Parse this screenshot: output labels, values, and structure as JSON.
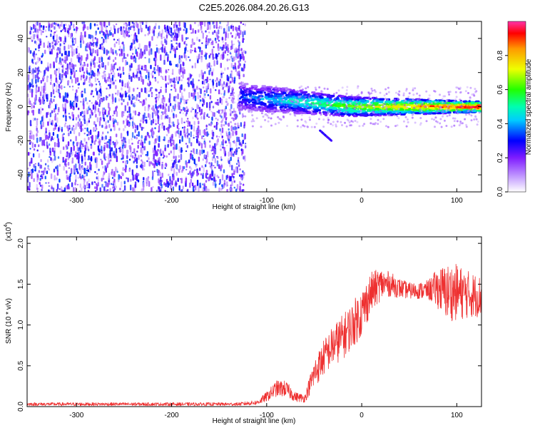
{
  "chart_data": [
    {
      "type": "heatmap",
      "title": "C2E5.2026.084.20.26.G13",
      "xlabel": "Height of straight line (km)",
      "ylabel": "Frequency (Hz)",
      "xlim": [
        -352,
        126
      ],
      "ylim": [
        -50,
        50
      ],
      "x_ticks": [
        -300,
        -200,
        -100,
        0,
        100
      ],
      "y_ticks": [
        -40,
        -20,
        0,
        20,
        40
      ],
      "noise_region": {
        "x_range": [
          -352,
          -123
        ],
        "description_value_range": [
          0.05,
          0.35
        ]
      },
      "signal_band": {
        "x_range": [
          -130,
          126
        ],
        "center_frequency_hz": 0,
        "start_frequency_hz": 6,
        "amplitude_start": 0.3,
        "amplitude_end": 1.0,
        "secondary_streak": {
          "x_range": [
            -45,
            -33
          ],
          "frequency_range": [
            -20,
            -14
          ]
        }
      },
      "colorbar": {
        "label": "Normalized spectral amplitude",
        "range": [
          0,
          1
        ],
        "ticks": [
          "0.0",
          "0.2",
          "0.4",
          "0.6",
          "0.8"
        ]
      }
    },
    {
      "type": "line",
      "xlabel": "Height of straight line (km)",
      "ylabel": "SNR (10 * v/v)",
      "y_multiplier": "(x10",
      "y_multiplier_exp": "4",
      "y_multiplier_close": ")",
      "xlim": [
        -352,
        126
      ],
      "ylim": [
        0,
        2.08
      ],
      "x_ticks": [
        -300,
        -200,
        -100,
        0,
        100
      ],
      "y_ticks": [
        "0.0",
        "0.5",
        "1.0",
        "1.5",
        "2.0"
      ],
      "series": [
        {
          "name": "SNR",
          "color": "#ee3030",
          "envelope_x": [
            -352,
            -130,
            -110,
            -100,
            -90,
            -80,
            -70,
            -60,
            -50,
            -40,
            -30,
            -20,
            -10,
            0,
            10,
            20,
            30,
            40,
            50,
            60,
            70,
            80,
            90,
            100,
            110,
            126
          ],
          "envelope_y": [
            0.03,
            0.03,
            0.05,
            0.12,
            0.22,
            0.22,
            0.12,
            0.1,
            0.4,
            0.6,
            0.75,
            0.85,
            1.0,
            1.15,
            1.4,
            1.5,
            1.5,
            1.45,
            1.42,
            1.42,
            1.43,
            1.45,
            1.4,
            1.4,
            1.38,
            1.35
          ],
          "spread_y": [
            0.02,
            0.02,
            0.03,
            0.06,
            0.1,
            0.1,
            0.06,
            0.05,
            0.18,
            0.22,
            0.25,
            0.28,
            0.28,
            0.3,
            0.25,
            0.2,
            0.15,
            0.12,
            0.1,
            0.1,
            0.12,
            0.25,
            0.35,
            0.35,
            0.3,
            0.25
          ]
        }
      ]
    }
  ],
  "colors": {
    "line": "#ee3030",
    "axis": "#000000",
    "background": "#ffffff"
  }
}
